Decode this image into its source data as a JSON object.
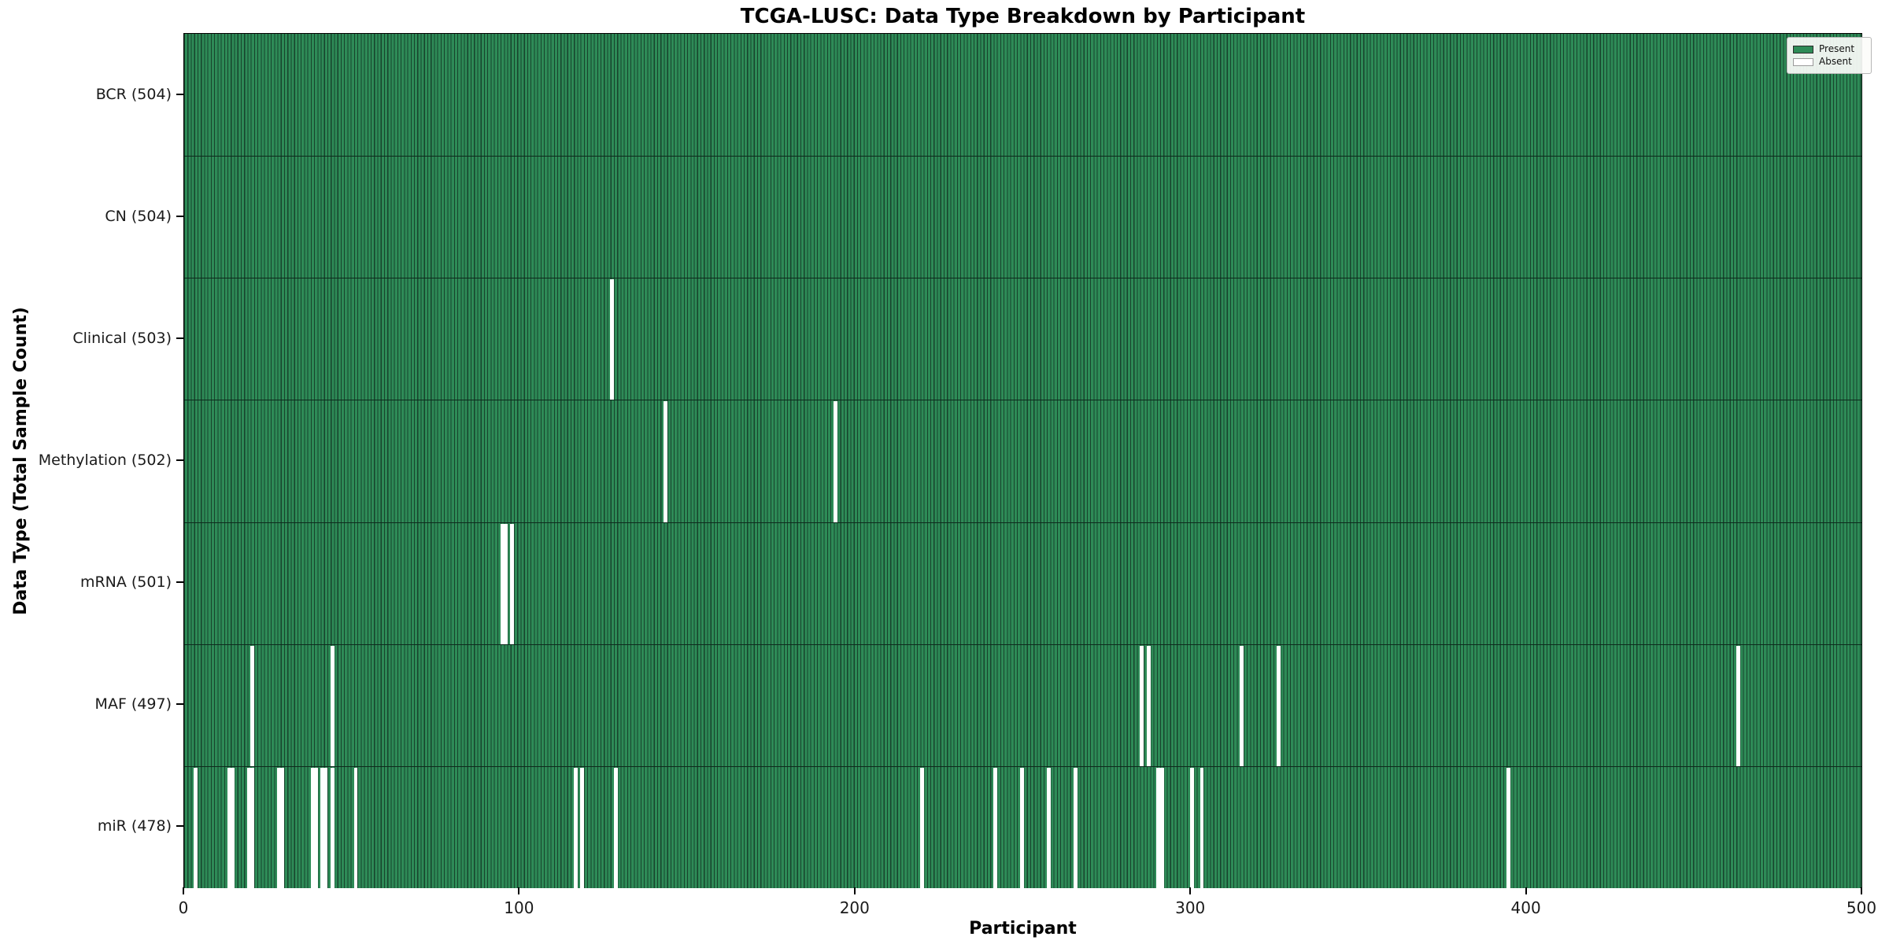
{
  "chart_data": {
    "type": "heatmap",
    "title": "TCGA-LUSC: Data Type Breakdown by Participant",
    "xlabel": "Participant",
    "ylabel": "Data Type (Total Sample Count)",
    "x_ticks": [
      0,
      100,
      200,
      300,
      400,
      500
    ],
    "x_axis_range": [
      0,
      500
    ],
    "n_participants": 504,
    "grid": false,
    "legend_position": "upper right",
    "legend": [
      {
        "label": "Present",
        "color": "#2e8b57"
      },
      {
        "label": "Absent",
        "color": "#ffffff"
      }
    ],
    "colors": {
      "present_fill": "#2e8b57",
      "present_edge": "#17432c",
      "absent_fill": "#ffffff",
      "separator": "#0d2a1c"
    },
    "rows": [
      {
        "label": "BCR (504)",
        "data_type": "BCR",
        "present_count": 504,
        "absent_participants": []
      },
      {
        "label": "CN (504)",
        "data_type": "CN",
        "present_count": 504,
        "absent_participants": []
      },
      {
        "label": "Clinical (503)",
        "data_type": "Clinical",
        "present_count": 503,
        "absent_participants": [
          128
        ]
      },
      {
        "label": "Methylation (502)",
        "data_type": "Methylation",
        "present_count": 502,
        "absent_participants": [
          144,
          195
        ]
      },
      {
        "label": "mRNA (501)",
        "data_type": "mRNA",
        "present_count": 501,
        "absent_participants": [
          95,
          96,
          98
        ]
      },
      {
        "label": "MAF (497)",
        "data_type": "MAF",
        "present_count": 497,
        "absent_participants": [
          20,
          44,
          287,
          289,
          317,
          328,
          466
        ]
      },
      {
        "label": "miR (478)",
        "data_type": "miR",
        "present_count": 478,
        "absent_participants": [
          3,
          13,
          14,
          19,
          20,
          28,
          29,
          38,
          39,
          41,
          42,
          44,
          51,
          117,
          119,
          129,
          221,
          243,
          251,
          259,
          267,
          292,
          293,
          302,
          305,
          397
        ]
      }
    ]
  }
}
